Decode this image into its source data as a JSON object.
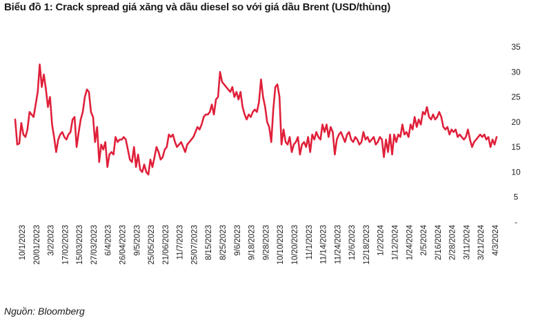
{
  "chart_data": {
    "type": "line",
    "title": "Biểu đồ 1: Crack spread giá xăng và dầu diesel so với giá dầu Brent (USD/thùng)",
    "source": "Nguồn: Bloomberg",
    "series_color": "#e0203a",
    "y_ticks": [
      "-",
      "5",
      "10",
      "15",
      "20",
      "25",
      "30",
      "35"
    ],
    "ylim": [
      0,
      35
    ],
    "x_tick_labels": [
      "10/1/2023",
      "20/01/2023",
      "3/2/2023",
      "17/02/2023",
      "15/03/2023",
      "27/03/2023",
      "6/4/2023",
      "26/04/2023",
      "9/5/2023",
      "25/05/2023",
      "21/06/2023",
      "11/7/2023",
      "25/07/2023",
      "8/15/2023",
      "8/25/2023",
      "9/6/2023",
      "9/18/2023",
      "9/28/2023",
      "10/10/2023",
      "10/20/2023",
      "11/1/2023",
      "11/14/2023",
      "11/24/2023",
      "12/6/2023",
      "12/18/2023",
      "1/2/2024",
      "1/12/2024",
      "1/24/2024",
      "2/5/2024",
      "2/16/2024",
      "2/28/2024",
      "3/11/2024",
      "3/21/2024",
      "4/3/2024"
    ],
    "series": [
      {
        "name": "Crack spread",
        "values": [
          20.5,
          15.5,
          15.7,
          19.8,
          17.5,
          17.0,
          18.5,
          22.0,
          21.5,
          21.0,
          23.5,
          26.0,
          31.5,
          27.0,
          29.5,
          26.5,
          23.0,
          25.0,
          19.5,
          17.0,
          14.0,
          16.5,
          17.5,
          18.0,
          17.0,
          16.5,
          17.5,
          18.0,
          20.5,
          21.0,
          15.0,
          18.0,
          20.5,
          22.0,
          25.0,
          26.5,
          26.0,
          22.0,
          21.0,
          16.0,
          19.0,
          12.0,
          15.5,
          14.5,
          16.0,
          11.0,
          13.5,
          14.0,
          13.5,
          17.0,
          16.0,
          16.5,
          16.5,
          17.0,
          16.5,
          14.5,
          12.5,
          12.0,
          15.0,
          11.0,
          13.5,
          10.5,
          10.0,
          11.5,
          10.0,
          9.5,
          12.5,
          11.0,
          13.0,
          15.0,
          14.0,
          12.5,
          13.0,
          14.5,
          15.0,
          17.5,
          17.0,
          17.5,
          16.0,
          15.0,
          15.5,
          16.0,
          15.0,
          14.0,
          15.5,
          16.0,
          16.5,
          17.0,
          18.0,
          19.0,
          18.5,
          19.5,
          21.0,
          21.5,
          21.5,
          22.0,
          23.5,
          21.5,
          24.5,
          25.0,
          30.0,
          28.0,
          27.5,
          27.0,
          26.5,
          26.0,
          27.0,
          25.0,
          26.0,
          24.5,
          26.0,
          23.0,
          21.5,
          20.5,
          21.5,
          21.0,
          22.0,
          22.5,
          22.0,
          24.0,
          28.5,
          25.0,
          23.0,
          20.0,
          19.0,
          16.0,
          22.5,
          27.0,
          27.5,
          25.0,
          15.5,
          18.5,
          16.0,
          15.5,
          17.0,
          14.0,
          15.5,
          16.0,
          17.0,
          13.5,
          15.5,
          16.0,
          15.0,
          17.0,
          14.0,
          17.5,
          16.5,
          18.0,
          17.0,
          16.5,
          19.5,
          18.0,
          19.5,
          17.0,
          19.0,
          18.0,
          13.5,
          16.5,
          17.5,
          18.0,
          17.0,
          16.0,
          17.5,
          18.0,
          16.5,
          16.0,
          17.0,
          16.5,
          15.5,
          16.0,
          18.0,
          16.5,
          17.0,
          16.0,
          16.5,
          17.0,
          15.5,
          16.0,
          17.0,
          16.5,
          13.0,
          16.5,
          14.0,
          17.5,
          13.5,
          17.5,
          16.0,
          17.5,
          17.0,
          19.5,
          17.5,
          18.0,
          17.0,
          19.5,
          18.5,
          21.0,
          19.0,
          20.5,
          19.5,
          22.0,
          21.5,
          23.0,
          21.0,
          20.5,
          21.5,
          20.5,
          21.0,
          22.0,
          21.0,
          19.0,
          18.5,
          19.0,
          17.5,
          18.5,
          18.0,
          18.5,
          17.0,
          17.5,
          17.0,
          16.5,
          17.0,
          18.5,
          16.5,
          15.0,
          16.0,
          16.5,
          17.0,
          17.5,
          17.0,
          17.5,
          16.5,
          17.0,
          15.0,
          16.5,
          15.5,
          17.0
        ]
      }
    ]
  }
}
